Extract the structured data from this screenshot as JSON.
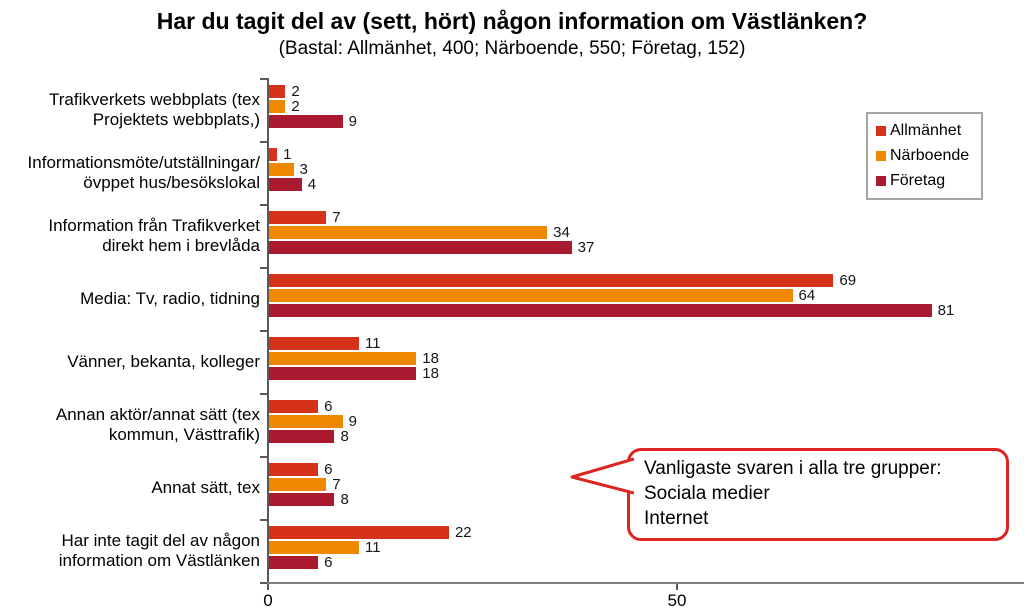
{
  "title": "Har du tagit del av (sett, hört) någon information om Västlänken?",
  "subtitle": "(Bastal: Allmänhet, 400; Närboende, 550; Företag, 152)",
  "colors": {
    "allmanhet": "#d5311b",
    "narboende": "#ee8800",
    "foretag": "#a91a31",
    "callout_border": "#dc2420",
    "axis": "#595959"
  },
  "chart_data": {
    "type": "bar",
    "orientation": "horizontal",
    "categories": [
      "Trafikverkets webbplats (tex\nProjektets webbplats,)",
      "Informationsmöte/utställningar/\növppet hus/besökslokal",
      "Information från Trafikverket\ndirekt hem i brevlåda",
      "Media: Tv, radio, tidning",
      "Vänner, bekanta, kolleger",
      "Annan aktör/annat sätt (tex\nkommun, Västtrafik)",
      "Annat sätt, tex",
      "Har inte tagit del av någon\ninformation om Västlänken"
    ],
    "series": [
      {
        "name": "Allmänhet",
        "color": "#d5311b",
        "values": [
          2,
          1,
          7,
          69,
          11,
          6,
          6,
          22
        ]
      },
      {
        "name": "Närboende",
        "color": "#ee8800",
        "values": [
          2,
          3,
          34,
          64,
          18,
          9,
          7,
          11
        ]
      },
      {
        "name": "Företag",
        "color": "#a91a31",
        "values": [
          9,
          4,
          37,
          81,
          18,
          8,
          8,
          6
        ]
      }
    ],
    "x_ticks": [
      0,
      50
    ],
    "xlim": [
      0,
      92
    ],
    "grid": false,
    "legend_position": "upper-right",
    "value_labels": true
  },
  "callout": {
    "lines": [
      "Vanligaste svaren i alla tre grupper:",
      "Sociala medier",
      "Internet"
    ]
  }
}
